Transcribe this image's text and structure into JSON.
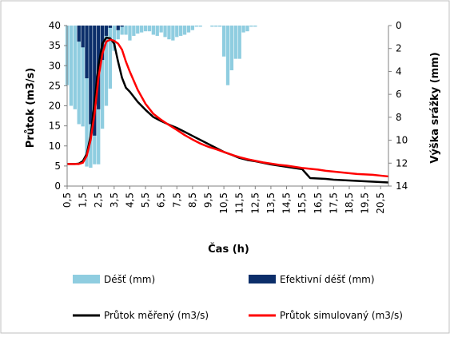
{
  "chart_data": {
    "type": "bar+line",
    "title": "",
    "xlabel": "Čas (h)",
    "ylabel": "Průtok (m3/s)",
    "y2label": "Výška srážky (mm)",
    "ylim": [
      0,
      40
    ],
    "y2lim": [
      0,
      14
    ],
    "y2_inverted": true,
    "xlim": [
      0.5,
      21
    ],
    "yticks": [
      "0",
      "5",
      "10",
      "15",
      "20",
      "25",
      "30",
      "35",
      "40"
    ],
    "y2ticks": [
      "0",
      "2",
      "4",
      "6",
      "8",
      "10",
      "12",
      "14"
    ],
    "xticks": [
      "0,5",
      "1,5",
      "2,5",
      "3,5",
      "4,5",
      "5,5",
      "6,5",
      "7,5",
      "8,5",
      "9,5",
      "10,5",
      "11,5",
      "12,5",
      "13,5",
      "14,5",
      "15,5",
      "16,5",
      "17,5",
      "18,5",
      "19,5",
      "20,5"
    ],
    "grid": false,
    "legend_position": "bottom",
    "series": [
      {
        "name": "Déšť (mm)",
        "kind": "bar",
        "axis": "y2",
        "color": "#8fcde0",
        "x": [
          0.5,
          0.75,
          1,
          1.25,
          1.5,
          1.75,
          2,
          2.25,
          2.5,
          2.75,
          3,
          3.25,
          3.5,
          3.75,
          4,
          4.25,
          4.5,
          4.75,
          5,
          5.25,
          5.5,
          5.75,
          6,
          6.25,
          6.5,
          6.75,
          7,
          7.25,
          7.5,
          7.75,
          8,
          8.25,
          8.5,
          8.75,
          9,
          9.25,
          9.5,
          9.75,
          10,
          10.25,
          10.5,
          10.75,
          11,
          11.25,
          11.5,
          11.75,
          12,
          12.25,
          12.5
        ],
        "values": [
          5.2,
          7.0,
          7.3,
          8.6,
          8.8,
          12.3,
          12.4,
          12.1,
          12.1,
          9.0,
          7.0,
          5.5,
          2.2,
          1.2,
          0.8,
          0.8,
          1.3,
          0.9,
          0.7,
          0.6,
          0.5,
          0.5,
          0.8,
          0.9,
          0.6,
          1.0,
          1.2,
          1.3,
          1.0,
          0.9,
          0.8,
          0.6,
          0.4,
          0.1,
          0.1,
          0.0,
          0.0,
          0.1,
          0.1,
          0.1,
          2.7,
          5.2,
          3.9,
          2.9,
          2.9,
          0.6,
          0.5,
          0.1,
          0.1
        ]
      },
      {
        "name": "Efektivní déšť (mm)",
        "kind": "bar",
        "axis": "y2",
        "color": "#0c2e6a",
        "x": [
          0.5,
          0.75,
          1,
          1.25,
          1.5,
          1.75,
          2,
          2.25,
          2.5,
          2.75,
          3,
          3.25,
          3.5,
          3.75,
          4,
          4.25,
          4.5
        ],
        "values": [
          0.0,
          0.0,
          0.0,
          1.4,
          1.9,
          4.6,
          8.6,
          9.6,
          7.3,
          3.0,
          0.9,
          0.2,
          0.0,
          0.4,
          0.1,
          0.0,
          0.0
        ]
      },
      {
        "name": "Průtok měřený (m3/s)",
        "kind": "line",
        "axis": "y",
        "color": "#000000",
        "x": [
          0.5,
          1,
          1.25,
          1.5,
          1.75,
          2,
          2.25,
          2.5,
          2.75,
          3,
          3.25,
          3.5,
          3.75,
          4,
          4.25,
          4.5,
          5,
          5.5,
          6,
          6.5,
          7,
          7.5,
          8,
          8.5,
          9,
          9.5,
          10,
          10.5,
          11,
          11.5,
          12,
          12.5,
          13,
          13.5,
          14,
          14.5,
          15,
          15.5,
          16,
          16.5,
          17,
          17.5,
          18,
          18.5,
          19,
          19.5,
          20,
          20.5,
          21
        ],
        "values": [
          5.5,
          5.5,
          5.6,
          6.2,
          8.0,
          12.5,
          21.0,
          30.0,
          35.5,
          37.0,
          36.8,
          35.5,
          31.0,
          27.0,
          24.5,
          23.5,
          21.0,
          19.0,
          17.2,
          16.2,
          15.3,
          14.5,
          13.5,
          12.5,
          11.5,
          10.5,
          9.5,
          8.5,
          7.8,
          7.0,
          6.5,
          6.2,
          5.8,
          5.4,
          5.1,
          4.8,
          4.5,
          4.2,
          2.0,
          1.9,
          1.8,
          1.6,
          1.5,
          1.4,
          1.3,
          1.2,
          1.1,
          1.0,
          0.9
        ]
      },
      {
        "name": "Průtok simulovaný (m3/s)",
        "kind": "line",
        "axis": "y",
        "color": "#ff0000",
        "x": [
          0.5,
          1,
          1.25,
          1.5,
          1.75,
          2,
          2.25,
          2.5,
          2.75,
          3,
          3.25,
          3.5,
          3.75,
          4,
          4.25,
          4.5,
          5,
          5.5,
          6,
          6.5,
          7,
          7.5,
          8,
          8.5,
          9,
          9.5,
          10,
          10.5,
          11,
          11.5,
          12,
          12.5,
          13,
          13.5,
          14,
          14.5,
          15,
          15.5,
          16,
          16.5,
          17,
          17.5,
          18,
          18.5,
          19,
          19.5,
          20,
          20.5,
          21
        ],
        "values": [
          5.5,
          5.5,
          5.5,
          5.8,
          7.5,
          11.5,
          18.0,
          27.0,
          33.0,
          36.0,
          36.5,
          36.2,
          35.5,
          34.0,
          31.0,
          28.5,
          24.0,
          20.5,
          18.0,
          16.5,
          15.2,
          14.0,
          12.7,
          11.6,
          10.6,
          9.8,
          9.2,
          8.5,
          7.8,
          7.2,
          6.7,
          6.3,
          5.9,
          5.6,
          5.3,
          5.1,
          4.8,
          4.5,
          4.3,
          4.1,
          3.8,
          3.6,
          3.4,
          3.2,
          3.0,
          2.9,
          2.8,
          2.6,
          2.4
        ]
      }
    ]
  }
}
